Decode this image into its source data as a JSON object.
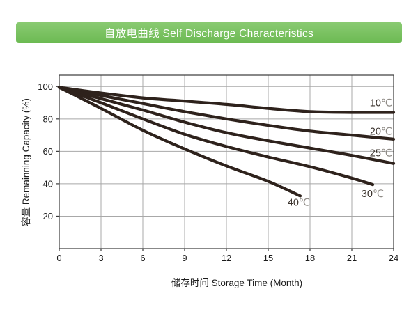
{
  "header": {
    "title": "自放电曲线 Self Discharge Characteristics",
    "bg_color": "#79c25d",
    "text_color": "#ffffff"
  },
  "chart_data": {
    "type": "line",
    "title": "自放电曲线 Self Discharge Characteristics",
    "xlabel": "储存时间 Storage Time (Month)",
    "ylabel": "容量 Remainning Capacity (%)",
    "xlim": [
      0,
      24
    ],
    "ylim": [
      0,
      107
    ],
    "xticks": [
      "0",
      "3",
      "6",
      "9",
      "12",
      "15",
      "18",
      "21",
      "24"
    ],
    "xtick_values": [
      0,
      3,
      6,
      9,
      12,
      15,
      18,
      21,
      24
    ],
    "yticks": [
      "20",
      "40",
      "60",
      "80",
      "100"
    ],
    "ytick_values": [
      20,
      40,
      60,
      80,
      100
    ],
    "grid": true,
    "legend_position": "inline-end-labels",
    "line_color": "#2e221c",
    "grid_color": "#a8a8a8",
    "border_color": "#3a3a3a",
    "label_value_color": "#3b332d",
    "label_unit_color": "#8f8b86",
    "series": [
      {
        "name": "10℃",
        "label_value": "10",
        "label_unit": "℃",
        "label_pos": [
          23.1,
          90
        ],
        "points": [
          [
            0,
            99.5
          ],
          [
            3,
            96
          ],
          [
            6,
            93
          ],
          [
            9,
            91
          ],
          [
            12,
            89
          ],
          [
            15,
            86.5
          ],
          [
            18,
            84.5
          ],
          [
            21,
            84
          ],
          [
            24,
            84
          ]
        ]
      },
      {
        "name": "20℃",
        "label_value": "20",
        "label_unit": "℃",
        "label_pos": [
          23.1,
          72.5
        ],
        "points": [
          [
            0,
            99.5
          ],
          [
            3,
            94.5
          ],
          [
            6,
            89.5
          ],
          [
            9,
            84.5
          ],
          [
            12,
            80
          ],
          [
            15,
            76
          ],
          [
            18,
            72.5
          ],
          [
            21,
            70
          ],
          [
            24,
            67.5
          ]
        ]
      },
      {
        "name": "25℃",
        "label_value": "25",
        "label_unit": "℃",
        "label_pos": [
          23.1,
          59
        ],
        "points": [
          [
            0,
            99.5
          ],
          [
            3,
            92.5
          ],
          [
            6,
            85.5
          ],
          [
            9,
            78
          ],
          [
            12,
            71.5
          ],
          [
            15,
            66.5
          ],
          [
            18,
            62
          ],
          [
            21,
            57.5
          ],
          [
            24,
            52.5
          ]
        ]
      },
      {
        "name": "30℃",
        "label_value": "30",
        "label_unit": "℃",
        "label_pos": [
          22.5,
          34
        ],
        "points": [
          [
            0,
            99.5
          ],
          [
            3,
            90
          ],
          [
            6,
            80
          ],
          [
            9,
            70.5
          ],
          [
            12,
            63
          ],
          [
            15,
            56.5
          ],
          [
            18,
            50.5
          ],
          [
            21,
            43.5
          ],
          [
            22.5,
            39.5
          ]
        ]
      },
      {
        "name": "40℃",
        "label_value": "40",
        "label_unit": "℃",
        "label_pos": [
          17.2,
          28.5
        ],
        "points": [
          [
            0,
            99.5
          ],
          [
            3,
            86.5
          ],
          [
            6,
            73
          ],
          [
            9,
            61.5
          ],
          [
            12,
            51
          ],
          [
            15,
            41.5
          ],
          [
            17.3,
            32.5
          ]
        ]
      }
    ]
  }
}
